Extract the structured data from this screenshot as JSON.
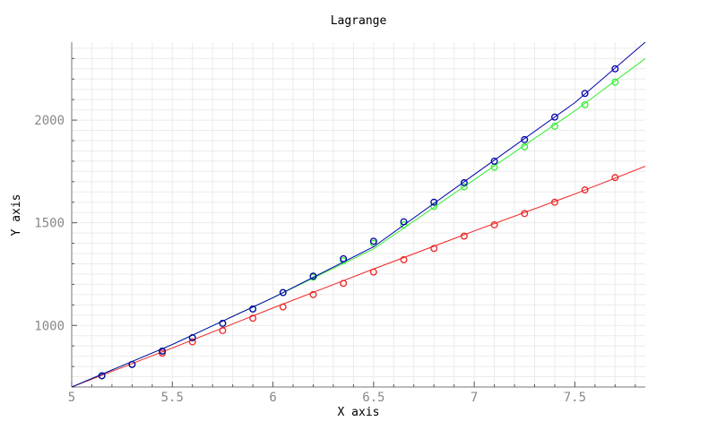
{
  "chart_data": {
    "type": "line",
    "title": "Lagrange",
    "xlabel": "X axis",
    "ylabel": "Y axis",
    "xlim": [
      5,
      7.85
    ],
    "ylim": [
      700,
      2380
    ],
    "x_ticks": [
      5,
      5.5,
      6,
      6.5,
      7,
      7.5
    ],
    "y_ticks": [
      1000,
      1500,
      2000
    ],
    "grid": true,
    "series": [
      {
        "color": "#0000aa",
        "curve": {
          "x": [
            5,
            5.5,
            6,
            6.5,
            7,
            7.5,
            7.85
          ],
          "y": [
            700,
            907,
            1135,
            1383,
            1735,
            2085,
            2380
          ]
        },
        "x": [
          5.15,
          5.3,
          5.45,
          5.6,
          5.75,
          5.9,
          6.05,
          6.2,
          6.35,
          6.5,
          6.65,
          6.8,
          6.95,
          7.1,
          7.25,
          7.4,
          7.55,
          7.7
        ],
        "y": [
          755,
          810,
          875,
          940,
          1010,
          1080,
          1160,
          1240,
          1325,
          1410,
          1505,
          1600,
          1695,
          1800,
          1905,
          2015,
          2130,
          2250
        ]
      },
      {
        "color": "#33ee33",
        "curve": {
          "x": [
            5,
            5.5,
            6,
            6.5,
            7,
            7.5,
            7.85
          ],
          "y": [
            700,
            907,
            1135,
            1373,
            1710,
            2045,
            2300
          ]
        },
        "x": [
          5.15,
          5.3,
          5.45,
          5.6,
          5.75,
          5.9,
          6.05,
          6.2,
          6.35,
          6.5,
          6.65,
          6.8,
          6.95,
          7.1,
          7.25,
          7.4,
          7.55,
          7.7
        ],
        "y": [
          755,
          810,
          875,
          940,
          1010,
          1080,
          1160,
          1235,
          1315,
          1400,
          1490,
          1580,
          1675,
          1770,
          1870,
          1970,
          2075,
          2185
        ]
      },
      {
        "color": "#ee2222",
        "curve": {
          "x": [
            5,
            5.5,
            6,
            6.5,
            7,
            7.5,
            7.85
          ],
          "y": [
            700,
            890,
            1085,
            1275,
            1460,
            1640,
            1775
          ]
        },
        "x": [
          5.3,
          5.45,
          5.6,
          5.75,
          5.9,
          6.05,
          6.2,
          6.35,
          6.5,
          6.65,
          6.8,
          6.95,
          7.1,
          7.25,
          7.4,
          7.55,
          7.7
        ],
        "y": [
          810,
          865,
          920,
          975,
          1035,
          1090,
          1150,
          1205,
          1260,
          1320,
          1375,
          1435,
          1490,
          1545,
          1600,
          1660,
          1720
        ]
      }
    ]
  }
}
